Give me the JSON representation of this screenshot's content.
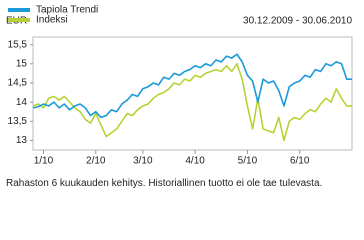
{
  "chart_data": {
    "type": "line",
    "y_label": "EUR",
    "subtitle": "30.12.2009 - 30.06.2010",
    "caption": "Rahaston 6 kuukauden kehitys. Historiallinen tuotto ei ole tae tulevasta.",
    "categories": [
      null,
      null,
      "1/10",
      null,
      null,
      null,
      null,
      null,
      null,
      null,
      null,
      null,
      "2/10",
      null,
      null,
      null,
      null,
      null,
      null,
      null,
      null,
      "3/10",
      null,
      null,
      null,
      null,
      null,
      null,
      null,
      null,
      null,
      "4/10",
      null,
      null,
      null,
      null,
      null,
      null,
      null,
      null,
      null,
      "5/10",
      null,
      null,
      null,
      null,
      null,
      null,
      null,
      null,
      null,
      "6/10",
      null,
      null,
      null,
      null,
      null,
      null,
      null,
      null,
      null,
      null
    ],
    "series": [
      {
        "name": "Tapiola Trendi",
        "color": "#1a9ad9",
        "values": [
          13.85,
          13.88,
          13.95,
          13.9,
          14.0,
          13.85,
          13.95,
          13.8,
          13.9,
          13.95,
          13.85,
          13.65,
          13.75,
          13.6,
          13.65,
          13.8,
          13.75,
          13.95,
          14.05,
          14.2,
          14.15,
          14.35,
          14.4,
          14.5,
          14.45,
          14.65,
          14.6,
          14.75,
          14.7,
          14.8,
          14.85,
          14.95,
          14.9,
          15.0,
          14.95,
          15.1,
          15.05,
          15.2,
          15.15,
          15.25,
          15.05,
          14.7,
          14.55,
          14.0,
          14.6,
          14.5,
          14.55,
          14.3,
          13.9,
          14.4,
          14.5,
          14.55,
          14.7,
          14.65,
          14.85,
          14.8,
          15.0,
          14.95,
          15.05,
          15.0,
          14.6,
          14.6
        ]
      },
      {
        "name": "Indeksi",
        "color": "#b5d334",
        "values": [
          13.9,
          13.95,
          13.85,
          14.1,
          14.15,
          14.05,
          14.15,
          14.0,
          13.85,
          13.75,
          13.55,
          13.45,
          13.7,
          13.4,
          13.1,
          13.2,
          13.3,
          13.5,
          13.7,
          13.65,
          13.8,
          13.9,
          13.95,
          14.1,
          14.2,
          14.25,
          14.35,
          14.5,
          14.45,
          14.6,
          14.55,
          14.7,
          14.65,
          14.75,
          14.8,
          14.85,
          14.8,
          14.95,
          14.8,
          15.0,
          14.6,
          13.9,
          13.3,
          14.1,
          13.3,
          13.25,
          13.2,
          13.6,
          13.0,
          13.5,
          13.6,
          13.55,
          13.7,
          13.8,
          13.75,
          13.95,
          14.1,
          14.0,
          14.35,
          14.1,
          13.9,
          13.9
        ]
      }
    ],
    "ylim": [
      12.75,
      15.7
    ],
    "yticks": [
      13,
      {
        "value": 13.5,
        "label": "13,5"
      },
      14,
      {
        "value": 14.5,
        "label": "14,5"
      },
      15,
      {
        "value": 15.5,
        "label": "15,5"
      }
    ],
    "grid": false
  }
}
